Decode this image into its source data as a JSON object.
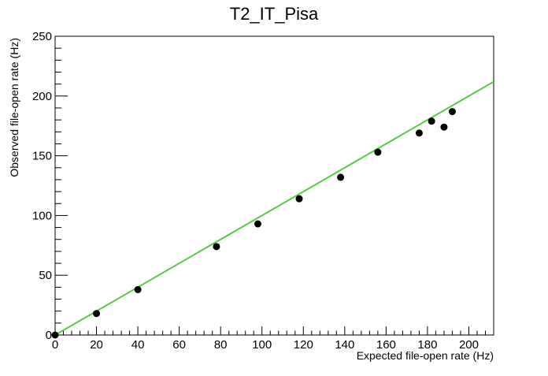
{
  "chart_data": {
    "type": "scatter",
    "title": "T2_IT_Pisa",
    "xlabel": "Expected file-open rate (Hz)",
    "ylabel": "Observed file-open rate (Hz)",
    "xlim": [
      0,
      212
    ],
    "ylim": [
      0,
      250
    ],
    "x_ticks": [
      0,
      20,
      40,
      60,
      80,
      100,
      120,
      140,
      160,
      180,
      200
    ],
    "y_ticks": [
      0,
      50,
      100,
      150,
      200,
      250
    ],
    "grid": false,
    "legend": "none",
    "series": [
      {
        "marker": "circle",
        "color": "#000000",
        "points": [
          {
            "x": 0,
            "y": 0
          },
          {
            "x": 20,
            "y": 18
          },
          {
            "x": 40,
            "y": 38
          },
          {
            "x": 78,
            "y": 74
          },
          {
            "x": 98,
            "y": 93
          },
          {
            "x": 118,
            "y": 114
          },
          {
            "x": 138,
            "y": 132
          },
          {
            "x": 156,
            "y": 153
          },
          {
            "x": 176,
            "y": 169
          },
          {
            "x": 182,
            "y": 179
          },
          {
            "x": 188,
            "y": 174
          },
          {
            "x": 192,
            "y": 187
          }
        ]
      }
    ],
    "reference_line": {
      "color": "#55cc44",
      "from": {
        "x": 0,
        "y": 0
      },
      "to": {
        "x": 212,
        "y": 212
      }
    }
  }
}
